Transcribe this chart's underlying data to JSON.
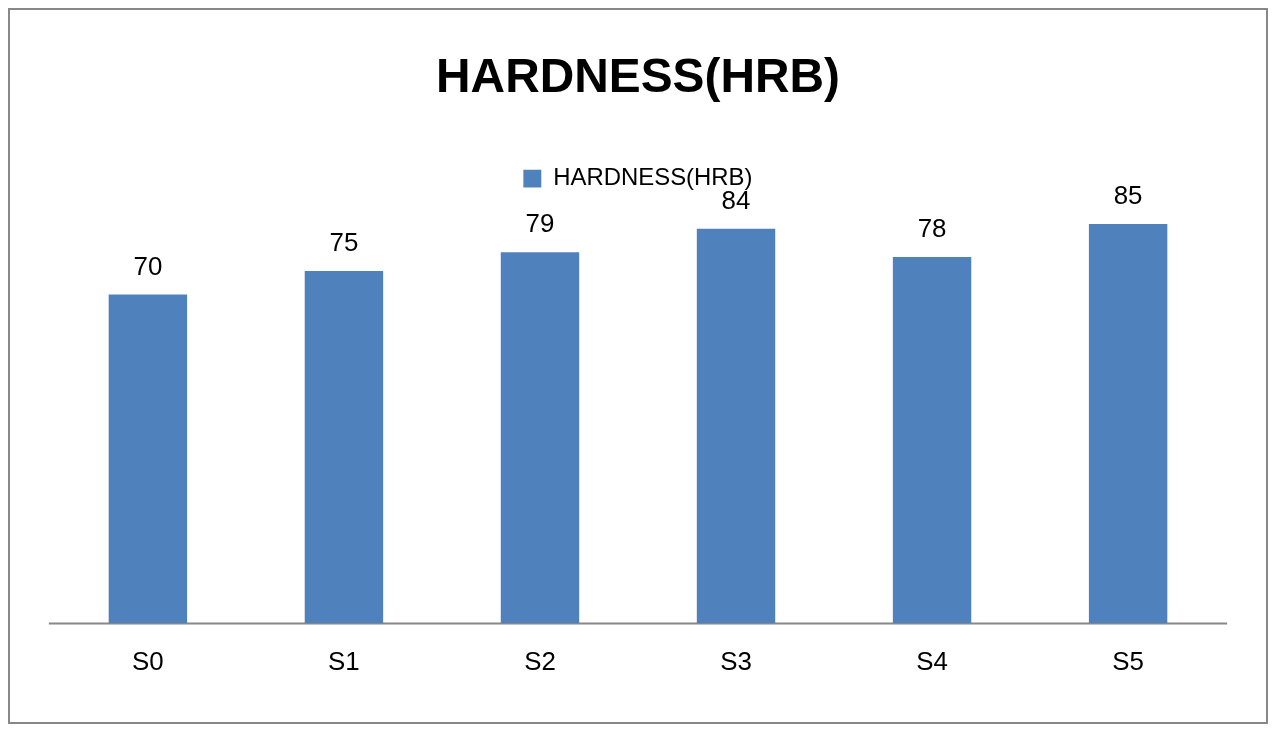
{
  "chart_data": {
    "type": "bar",
    "title": "HARDNESS(HRB)",
    "categories": [
      "S0",
      "S1",
      "S2",
      "S3",
      "S4",
      "S5"
    ],
    "series": [
      {
        "name": "HARDNESS(HRB)",
        "color": "#4f81bd",
        "values": [
          70,
          75,
          79,
          84,
          78,
          85
        ]
      }
    ],
    "data_labels": true,
    "legend": "top",
    "grid": false
  }
}
